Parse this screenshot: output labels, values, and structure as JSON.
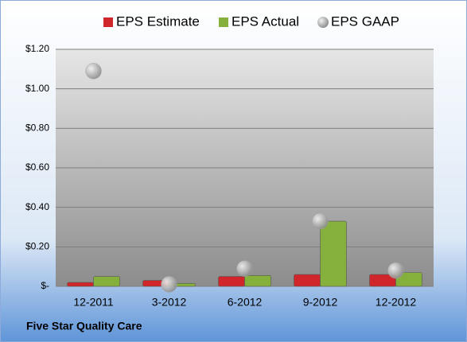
{
  "chart_data": {
    "type": "bar",
    "categories": [
      "12-2011",
      "3-2012",
      "6-2012",
      "9-2012",
      "12-2012"
    ],
    "series": [
      {
        "name": "EPS Estimate",
        "type": "bar",
        "color": "#d0262b",
        "values": [
          0.02,
          0.03,
          0.05,
          0.06,
          0.06
        ]
      },
      {
        "name": "EPS Actual",
        "type": "bar",
        "color": "#86b03c",
        "values": [
          0.05,
          0.015,
          0.055,
          0.33,
          0.07
        ]
      },
      {
        "name": "EPS GAAP",
        "type": "scatter",
        "color": "#a6a6a6",
        "values": [
          1.09,
          0.01,
          0.09,
          0.33,
          0.08
        ]
      }
    ],
    "ylim": [
      0,
      1.2
    ],
    "yticks": [
      {
        "value": 0,
        "label": "$-"
      },
      {
        "value": 0.2,
        "label": "$0.20"
      },
      {
        "value": 0.4,
        "label": "$0.40"
      },
      {
        "value": 0.6,
        "label": "$0.60"
      },
      {
        "value": 0.8,
        "label": "$0.80"
      },
      {
        "value": 1.0,
        "label": "$1.00"
      },
      {
        "value": 1.2,
        "label": "$1.20"
      }
    ],
    "grid": true,
    "legend": "top",
    "caption": "Five Star Quality Care"
  }
}
